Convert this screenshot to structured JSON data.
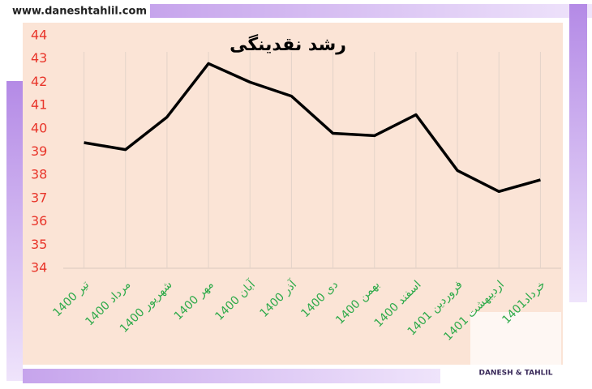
{
  "chart_data": {
    "type": "line",
    "title": "رشد نقدینگی",
    "categories": [
      "تیر 1400",
      "مرداد 1400",
      "شهریور 1400",
      "مهر  1400",
      "آبان 1400",
      "آذر 1400",
      "دی 1400",
      "بهمن 1400",
      "اسفند 1400",
      "فروردین 1401",
      "اردیبهشت 1401",
      "خرداد1401"
    ],
    "values": [
      39.4,
      39.1,
      40.5,
      42.8,
      42.0,
      41.4,
      39.8,
      39.7,
      40.6,
      38.2,
      37.3,
      37.8
    ],
    "color": "#000000",
    "tick_color": "#e8352a",
    "category_color": "#2eaa4a",
    "ylim": [
      34,
      44
    ],
    "yticks": [
      34,
      35,
      36,
      37,
      38,
      39,
      40,
      41,
      42,
      43,
      44
    ],
    "grid": false
  },
  "watermark": {
    "url": "www.daneshtahlil.com",
    "logo": "DANESH & TAHLIL"
  }
}
